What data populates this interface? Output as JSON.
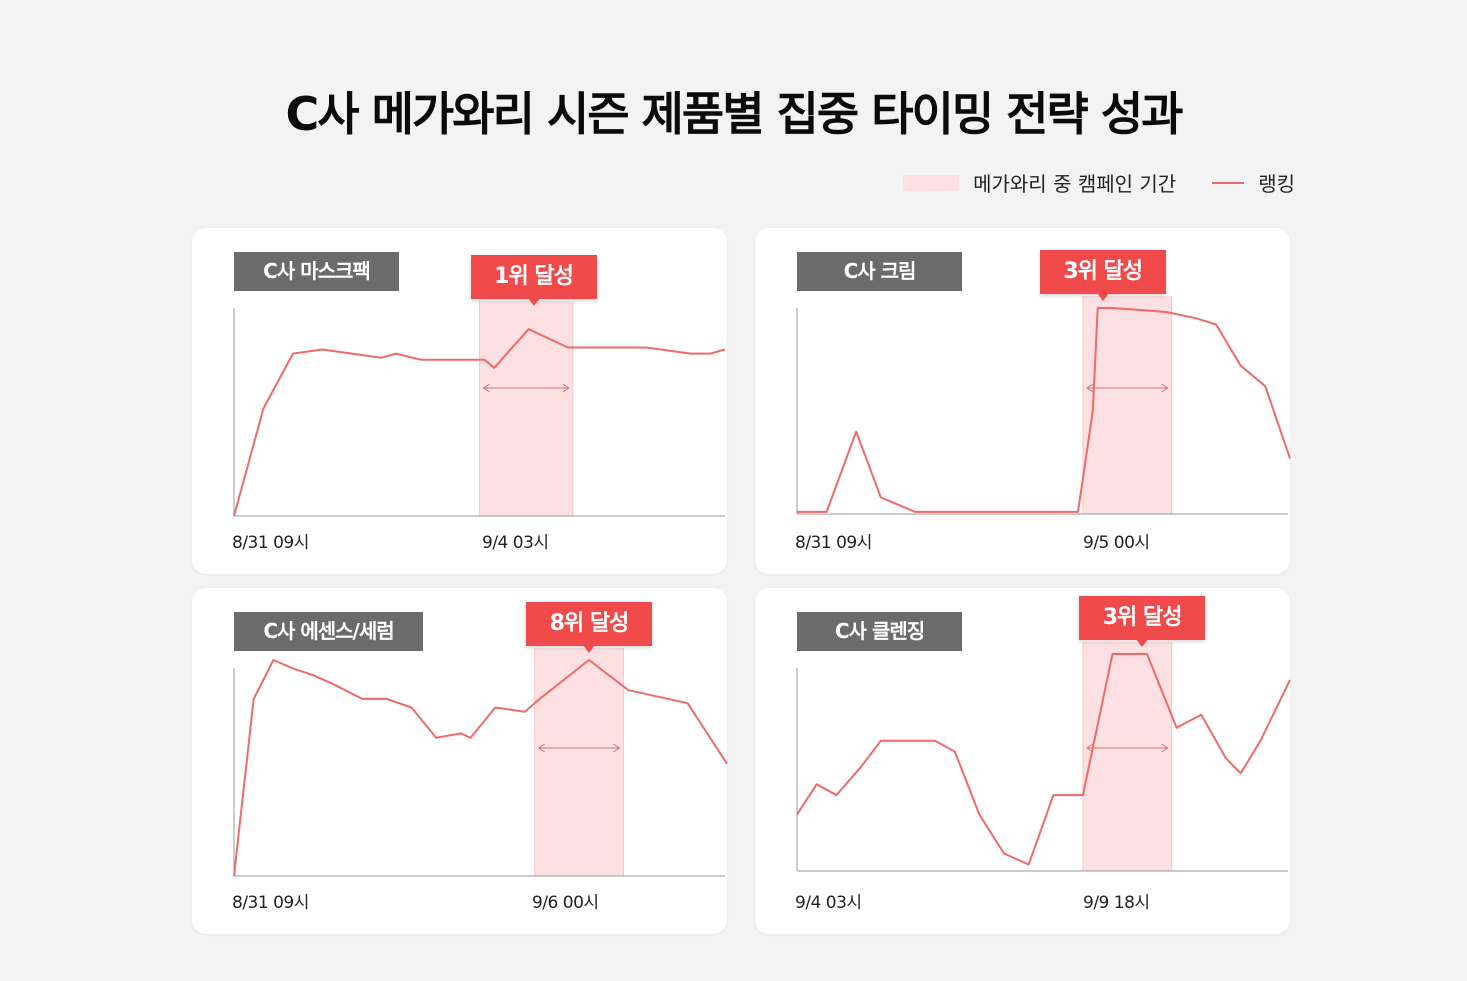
{
  "title": "C사 메가와리 시즌 제품별 집중 타이밍 전략 성과",
  "legend": {
    "area_label": "메가와리 중 캠페인 기간",
    "line_label": "랭킹"
  },
  "colors": {
    "line": "#f06a6a",
    "campaign": "#fde0e1",
    "badge": "#f04a4a",
    "panel_title_bg": "#6b6b6b"
  },
  "chart_data": [
    {
      "type": "line",
      "title": "C사 마스크팩",
      "badge": "1위 달성",
      "tick_labels": [
        "8/31 09시",
        "9/4 03시"
      ],
      "campaign": [
        0.5,
        0.69
      ],
      "peak": 0.61,
      "x": [
        0,
        0.06,
        0.12,
        0.18,
        0.24,
        0.3,
        0.33,
        0.38,
        0.42,
        0.51,
        0.53,
        0.6,
        0.68,
        0.76,
        0.84,
        0.93,
        0.97,
        1.0
      ],
      "values": [
        0,
        0.53,
        0.8,
        0.82,
        0.8,
        0.78,
        0.8,
        0.77,
        0.77,
        0.77,
        0.73,
        0.92,
        0.83,
        0.83,
        0.83,
        0.8,
        0.8,
        0.82
      ]
    },
    {
      "type": "line",
      "title": "C사 크림",
      "badge": "3위 달성",
      "tick_labels": [
        "8/31 09시",
        "9/5 00시"
      ],
      "campaign": [
        0.58,
        0.76
      ],
      "peak": 0.62,
      "x": [
        0,
        0.06,
        0.12,
        0.17,
        0.24,
        0.28,
        0.35,
        0.42,
        0.49,
        0.56,
        0.57,
        0.6,
        0.61,
        0.64,
        0.7,
        0.75,
        0.81,
        0.85,
        0.9,
        0.95,
        1.0
      ],
      "values": [
        0.01,
        0.01,
        0.4,
        0.08,
        0.01,
        0.01,
        0.01,
        0.01,
        0.01,
        0.01,
        0.01,
        0.5,
        1.0,
        1.0,
        0.99,
        0.98,
        0.95,
        0.92,
        0.72,
        0.62,
        0.27
      ]
    },
    {
      "type": "line",
      "title": "C사 에센스/세럼",
      "badge": "8위 달성",
      "tick_labels": [
        "8/31 09시",
        "9/6 00시"
      ],
      "campaign": [
        0.61,
        0.79
      ],
      "peak": 0.72,
      "x": [
        0,
        0.04,
        0.08,
        0.12,
        0.16,
        0.2,
        0.26,
        0.31,
        0.36,
        0.41,
        0.46,
        0.48,
        0.53,
        0.59,
        0.62,
        0.72,
        0.8,
        0.86,
        0.92,
        1.0
      ],
      "values": [
        0,
        0.82,
        1.0,
        0.96,
        0.93,
        0.89,
        0.82,
        0.82,
        0.78,
        0.64,
        0.66,
        0.64,
        0.78,
        0.76,
        0.82,
        1.0,
        0.86,
        0.83,
        0.8,
        0.52
      ]
    },
    {
      "type": "line",
      "title": "C사 클렌징",
      "badge": "3위 달성",
      "tick_labels": [
        "9/4 03시",
        "9/9 18시"
      ],
      "campaign": [
        0.58,
        0.76
      ],
      "peak": 0.7,
      "x": [
        0,
        0.04,
        0.08,
        0.13,
        0.17,
        0.22,
        0.28,
        0.32,
        0.37,
        0.42,
        0.47,
        0.52,
        0.54,
        0.58,
        0.64,
        0.71,
        0.77,
        0.82,
        0.87,
        0.9,
        0.94,
        1.0
      ],
      "values": [
        0.26,
        0.4,
        0.35,
        0.48,
        0.6,
        0.6,
        0.6,
        0.55,
        0.26,
        0.08,
        0.03,
        0.35,
        0.35,
        0.35,
        1.0,
        1.0,
        0.66,
        0.72,
        0.52,
        0.45,
        0.6,
        0.88
      ]
    }
  ]
}
